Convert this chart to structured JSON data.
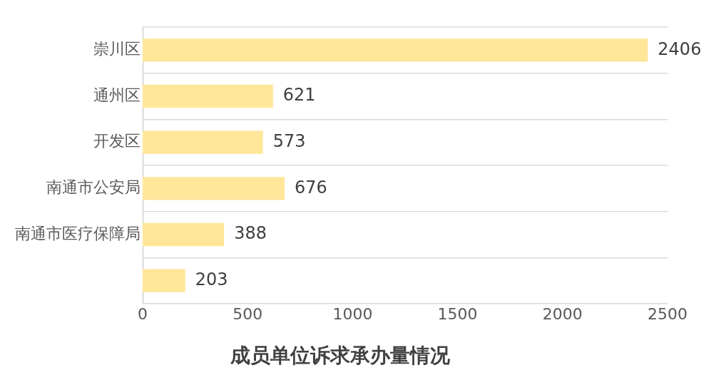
{
  "chart_data": {
    "type": "bar",
    "orientation": "horizontal",
    "title": "成员单位诉求承办量情况",
    "categories": [
      "崇川区",
      "通州区",
      "开发区",
      "南通市公安局",
      "南通市医疗保障局",
      null
    ],
    "values": [
      2406,
      621,
      573,
      676,
      388,
      203
    ],
    "color": "#ffe699",
    "xlim": [
      0,
      2500
    ],
    "xticks": [
      0,
      500,
      1000,
      1500,
      2000,
      2500
    ],
    "grid": "y",
    "legend": false,
    "data_labels": true
  }
}
